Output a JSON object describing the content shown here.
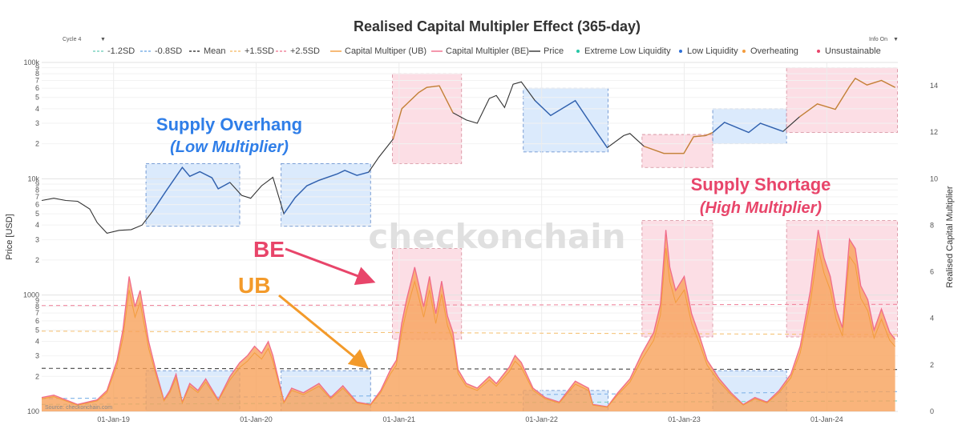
{
  "header": {
    "cycle_selector": "Cycle 4",
    "info_selector": "Info On"
  },
  "watermark": "checkonchain",
  "source": "Source: checkonchain.com",
  "colors": {
    "price": "#333333",
    "ub": "#f39c3d",
    "be": "#f06b8a",
    "area_fill": "#f7a15a",
    "blue_zone": "#cfe3fb",
    "blue_zone_edge": "#5a86c9",
    "pink_zone": "#fbd3dc",
    "pink_zone_edge": "#d48a99",
    "mean": "#444444",
    "minus12": "#7fd3c2",
    "minus08": "#7fb3e8",
    "plus15": "#f5c47a",
    "plus25": "#f08aa0",
    "extreme_low": "#26c6a6",
    "low": "#2f6fd6",
    "overheating": "#f39c3d",
    "unsustainable": "#e8456a",
    "anno_blue": "#2f7ee8",
    "anno_pink": "#e8456a",
    "anno_orange": "#f39a2a"
  },
  "annotations": {
    "supply_overhang": "Supply Overhang",
    "low_multiplier": "(Low Multiplier)",
    "supply_shortage": "Supply Shortage",
    "high_multiplier": "(High Multiplier)",
    "be_label": "BE",
    "ub_label": "UB"
  },
  "chart_data": {
    "type": "line",
    "title": "Realised Capital Multipler Effect (365-day)",
    "y_left": {
      "label": "Price [USD]",
      "scale": "log",
      "range": [
        100,
        100000
      ],
      "major_ticks": [
        "100",
        "1000",
        "10k",
        "100k"
      ],
      "minor_ticks": [
        "2",
        "3",
        "4",
        "5",
        "6",
        "7",
        "8",
        "9"
      ]
    },
    "y_right": {
      "label": "Realised Capital Multiplier",
      "range": [
        0,
        15
      ],
      "ticks": [
        "0",
        "2",
        "4",
        "6",
        "8",
        "10",
        "12",
        "14"
      ]
    },
    "x_ticks": [
      "01-Jan-19",
      "01-Jan-20",
      "01-Jan-21",
      "01-Jan-22",
      "01-Jan-23",
      "01-Jan-24"
    ],
    "x_range": [
      "2018-07-01",
      "2024-07-01"
    ],
    "legend": [
      {
        "label": "-1.2SD",
        "style": "dash",
        "color": "#7fd3c2"
      },
      {
        "label": "-0.8SD",
        "style": "dash",
        "color": "#7fb3e8"
      },
      {
        "label": "Mean",
        "style": "dash",
        "color": "#444444"
      },
      {
        "label": "+1.5SD",
        "style": "dash",
        "color": "#f5c47a"
      },
      {
        "label": "+2.5SD",
        "style": "dash",
        "color": "#f08aa0"
      },
      {
        "label": "Capital Multiper (UB)",
        "style": "line",
        "color": "#f39c3d"
      },
      {
        "label": "Capital Multipler (BE)",
        "style": "line",
        "color": "#f06b8a"
      },
      {
        "label": "Price",
        "style": "line",
        "color": "#333333"
      },
      {
        "label": "Extreme Low Liquidity",
        "style": "dot",
        "color": "#26c6a6"
      },
      {
        "label": "Low Liquidity",
        "style": "dot",
        "color": "#2f6fd6"
      },
      {
        "label": "Overheating",
        "style": "dot",
        "color": "#f39c3d"
      },
      {
        "label": "Unsustainable",
        "style": "dot",
        "color": "#e8456a"
      }
    ],
    "sd_bands": {
      "minus_1_2": [
        0.3,
        0.45
      ],
      "minus_0_8": [
        0.55,
        0.85
      ],
      "mean": [
        1.85,
        1.8
      ],
      "plus_1_5": [
        3.45,
        3.3
      ],
      "plus_2_5": [
        4.55,
        4.6
      ]
    },
    "price_series": [
      [
        "2018-07-01",
        6500
      ],
      [
        "2018-08-01",
        6800
      ],
      [
        "2018-09-01",
        6500
      ],
      [
        "2018-10-01",
        6400
      ],
      [
        "2018-11-01",
        5500
      ],
      [
        "2018-11-20",
        4200
      ],
      [
        "2018-12-15",
        3400
      ],
      [
        "2019-01-15",
        3600
      ],
      [
        "2019-02-15",
        3650
      ],
      [
        "2019-03-15",
        4000
      ],
      [
        "2019-04-10",
        5200
      ],
      [
        "2019-05-15",
        7800
      ],
      [
        "2019-06-26",
        12500
      ],
      [
        "2019-07-15",
        10500
      ],
      [
        "2019-08-10",
        11500
      ],
      [
        "2019-09-10",
        10200
      ],
      [
        "2019-09-26",
        8200
      ],
      [
        "2019-10-26",
        9300
      ],
      [
        "2019-11-25",
        7200
      ],
      [
        "2019-12-18",
        6800
      ],
      [
        "2020-01-15",
        8700
      ],
      [
        "2020-02-13",
        10300
      ],
      [
        "2020-03-12",
        5000
      ],
      [
        "2020-04-10",
        6900
      ],
      [
        "2020-05-10",
        8700
      ],
      [
        "2020-06-10",
        9700
      ],
      [
        "2020-07-27",
        11000
      ],
      [
        "2020-08-15",
        11800
      ],
      [
        "2020-09-15",
        10700
      ],
      [
        "2020-10-15",
        11400
      ],
      [
        "2020-11-10",
        15300
      ],
      [
        "2020-12-17",
        22000
      ],
      [
        "2021-01-08",
        40000
      ],
      [
        "2021-02-20",
        55000
      ],
      [
        "2021-03-13",
        61000
      ],
      [
        "2021-04-14",
        63000
      ],
      [
        "2021-05-19",
        37000
      ],
      [
        "2021-06-22",
        32000
      ],
      [
        "2021-07-20",
        30000
      ],
      [
        "2021-08-20",
        49000
      ],
      [
        "2021-09-07",
        52000
      ],
      [
        "2021-09-28",
        41000
      ],
      [
        "2021-10-20",
        65000
      ],
      [
        "2021-11-10",
        68000
      ],
      [
        "2021-12-15",
        47000
      ],
      [
        "2022-01-24",
        35000
      ],
      [
        "2022-03-28",
        47000
      ],
      [
        "2022-05-12",
        28000
      ],
      [
        "2022-06-18",
        18500
      ],
      [
        "2022-07-30",
        23500
      ],
      [
        "2022-08-15",
        24500
      ],
      [
        "2022-09-20",
        19000
      ],
      [
        "2022-11-10",
        16500
      ],
      [
        "2022-12-31",
        16500
      ],
      [
        "2023-01-25",
        23000
      ],
      [
        "2023-02-25",
        23500
      ],
      [
        "2023-03-15",
        25000
      ],
      [
        "2023-04-14",
        30500
      ],
      [
        "2023-06-15",
        25000
      ],
      [
        "2023-07-15",
        30000
      ],
      [
        "2023-09-11",
        25500
      ],
      [
        "2023-10-23",
        34000
      ],
      [
        "2023-12-08",
        44000
      ],
      [
        "2024-01-23",
        39500
      ],
      [
        "2024-02-28",
        62000
      ],
      [
        "2024-03-14",
        73000
      ],
      [
        "2024-04-13",
        64000
      ],
      [
        "2024-05-20",
        70000
      ],
      [
        "2024-06-24",
        61000
      ]
    ],
    "multiplier_series": [
      [
        "2018-07-01",
        0.6
      ],
      [
        "2018-08-01",
        0.7
      ],
      [
        "2018-10-01",
        0.3
      ],
      [
        "2018-11-20",
        0.5
      ],
      [
        "2018-12-15",
        0.9
      ],
      [
        "2019-01-10",
        2.2
      ],
      [
        "2019-01-25",
        3.5
      ],
      [
        "2019-02-10",
        5.8
      ],
      [
        "2019-02-25",
        4.5
      ],
      [
        "2019-03-10",
        5.2
      ],
      [
        "2019-04-01",
        3.0
      ],
      [
        "2019-04-20",
        1.7
      ],
      [
        "2019-05-10",
        0.5
      ],
      [
        "2019-05-25",
        0.9
      ],
      [
        "2019-06-10",
        1.6
      ],
      [
        "2019-06-26",
        0.4
      ],
      [
        "2019-07-15",
        1.2
      ],
      [
        "2019-08-05",
        0.9
      ],
      [
        "2019-08-25",
        1.4
      ],
      [
        "2019-09-26",
        0.5
      ],
      [
        "2019-10-26",
        1.5
      ],
      [
        "2019-11-20",
        2.1
      ],
      [
        "2019-12-10",
        2.4
      ],
      [
        "2019-12-28",
        2.8
      ],
      [
        "2020-01-15",
        2.5
      ],
      [
        "2020-02-01",
        3.0
      ],
      [
        "2020-02-13",
        2.4
      ],
      [
        "2020-03-12",
        0.4
      ],
      [
        "2020-04-01",
        1.0
      ],
      [
        "2020-05-01",
        0.8
      ],
      [
        "2020-06-10",
        1.2
      ],
      [
        "2020-07-10",
        0.6
      ],
      [
        "2020-08-10",
        1.1
      ],
      [
        "2020-09-15",
        0.4
      ],
      [
        "2020-10-20",
        0.3
      ],
      [
        "2020-11-15",
        0.9
      ],
      [
        "2020-12-10",
        1.8
      ],
      [
        "2020-12-25",
        2.2
      ],
      [
        "2021-01-08",
        3.8
      ],
      [
        "2021-01-20",
        4.8
      ],
      [
        "2021-02-10",
        6.2
      ],
      [
        "2021-02-21",
        5.4
      ],
      [
        "2021-03-05",
        4.5
      ],
      [
        "2021-03-20",
        5.8
      ],
      [
        "2021-04-05",
        4.2
      ],
      [
        "2021-04-20",
        5.6
      ],
      [
        "2021-05-05",
        4.1
      ],
      [
        "2021-05-19",
        3.4
      ],
      [
        "2021-06-01",
        1.8
      ],
      [
        "2021-06-22",
        1.2
      ],
      [
        "2021-07-20",
        1.0
      ],
      [
        "2021-08-20",
        1.5
      ],
      [
        "2021-09-07",
        1.2
      ],
      [
        "2021-10-10",
        1.9
      ],
      [
        "2021-10-25",
        2.4
      ],
      [
        "2021-11-10",
        2.1
      ],
      [
        "2021-12-10",
        1.0
      ],
      [
        "2022-01-10",
        0.6
      ],
      [
        "2022-02-15",
        0.4
      ],
      [
        "2022-03-28",
        1.3
      ],
      [
        "2022-05-01",
        1.0
      ],
      [
        "2022-05-12",
        0.3
      ],
      [
        "2022-06-18",
        0.2
      ],
      [
        "2022-07-15",
        0.8
      ],
      [
        "2022-08-15",
        1.4
      ],
      [
        "2022-09-15",
        2.5
      ],
      [
        "2022-10-15",
        3.4
      ],
      [
        "2022-11-01",
        4.6
      ],
      [
        "2022-11-15",
        7.8
      ],
      [
        "2022-11-25",
        6.2
      ],
      [
        "2022-12-10",
        5.2
      ],
      [
        "2023-01-01",
        5.8
      ],
      [
        "2023-01-20",
        4.2
      ],
      [
        "2023-02-10",
        3.2
      ],
      [
        "2023-03-01",
        2.2
      ],
      [
        "2023-04-01",
        1.4
      ],
      [
        "2023-05-01",
        0.8
      ],
      [
        "2023-06-01",
        0.3
      ],
      [
        "2023-07-01",
        0.6
      ],
      [
        "2023-08-01",
        0.4
      ],
      [
        "2023-09-01",
        0.9
      ],
      [
        "2023-10-01",
        1.6
      ],
      [
        "2023-10-25",
        2.8
      ],
      [
        "2023-11-20",
        5.2
      ],
      [
        "2023-12-10",
        7.8
      ],
      [
        "2023-12-25",
        6.6
      ],
      [
        "2024-01-10",
        5.8
      ],
      [
        "2024-01-25",
        4.4
      ],
      [
        "2024-02-10",
        3.6
      ],
      [
        "2024-02-28",
        7.4
      ],
      [
        "2024-03-14",
        7.0
      ],
      [
        "2024-03-28",
        5.4
      ],
      [
        "2024-04-15",
        4.8
      ],
      [
        "2024-05-01",
        3.5
      ],
      [
        "2024-05-20",
        4.4
      ],
      [
        "2024-06-10",
        3.4
      ],
      [
        "2024-06-24",
        3.1
      ]
    ],
    "zones": [
      {
        "kind": "low",
        "start": "2019-03-25",
        "end": "2019-11-20",
        "pmin": 3900,
        "pmax": 13500,
        "mmax": 1.75
      },
      {
        "kind": "low",
        "start": "2020-03-05",
        "end": "2020-10-20",
        "pmin": 3900,
        "pmax": 13500,
        "mmax": 1.75
      },
      {
        "kind": "high",
        "start": "2020-12-15",
        "end": "2021-06-10",
        "pmin": 13500,
        "pmax": 80000,
        "mmax": 7.0,
        "mmin": 3.1
      },
      {
        "kind": "low",
        "start": "2021-11-15",
        "end": "2022-06-20",
        "pmin": 17000,
        "pmax": 60000,
        "mmax": 0.9
      },
      {
        "kind": "high",
        "start": "2022-09-15",
        "end": "2023-03-15",
        "pmin": 12500,
        "pmax": 24000,
        "mmax": 8.2,
        "mmin": 3.2
      },
      {
        "kind": "low",
        "start": "2023-03-15",
        "end": "2023-09-20",
        "pmin": 20000,
        "pmax": 40000,
        "mmax": 1.75
      },
      {
        "kind": "high",
        "start": "2023-09-20",
        "end": "2024-06-30",
        "pmin": 25000,
        "pmax": 90000,
        "mmax": 8.2,
        "mmin": 3.2
      }
    ]
  }
}
